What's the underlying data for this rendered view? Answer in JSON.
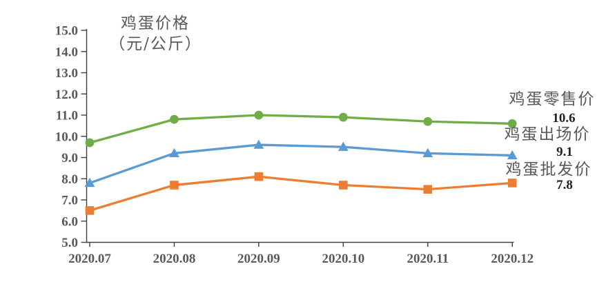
{
  "chart_data": {
    "type": "line",
    "title": "鸡蛋价格",
    "unit_label": "（元/公斤）",
    "categories": [
      "2020.07",
      "2020.08",
      "2020.09",
      "2020.10",
      "2020.11",
      "2020.12"
    ],
    "ylim": [
      5.0,
      15.0
    ],
    "ytick_step": 1.0,
    "ytick_labels": [
      "15.0",
      "14.0",
      "13.0",
      "12.0",
      "11.0",
      "10.0",
      "9.0",
      "8.0",
      "7.0",
      "6.0",
      "5.0"
    ],
    "grid": false,
    "legend_position": "right-of-last-point",
    "series": [
      {
        "name": "鸡蛋零售价",
        "marker": "circle",
        "color": "#70AD47",
        "values": [
          9.7,
          10.8,
          11.0,
          10.9,
          10.7,
          10.6
        ],
        "end_label": "10.6"
      },
      {
        "name": "鸡蛋出场价",
        "marker": "triangle",
        "color": "#5B9BD5",
        "values": [
          7.8,
          9.2,
          9.6,
          9.5,
          9.2,
          9.1
        ],
        "end_label": "9.1"
      },
      {
        "name": "鸡蛋批发价",
        "marker": "square",
        "color": "#ED7D31",
        "values": [
          6.5,
          7.7,
          8.1,
          7.7,
          7.5,
          7.8
        ],
        "end_label": "7.8"
      }
    ],
    "colors": {
      "text": "#595959",
      "value_label": "#1f1f1f",
      "axis": "#404040"
    }
  }
}
